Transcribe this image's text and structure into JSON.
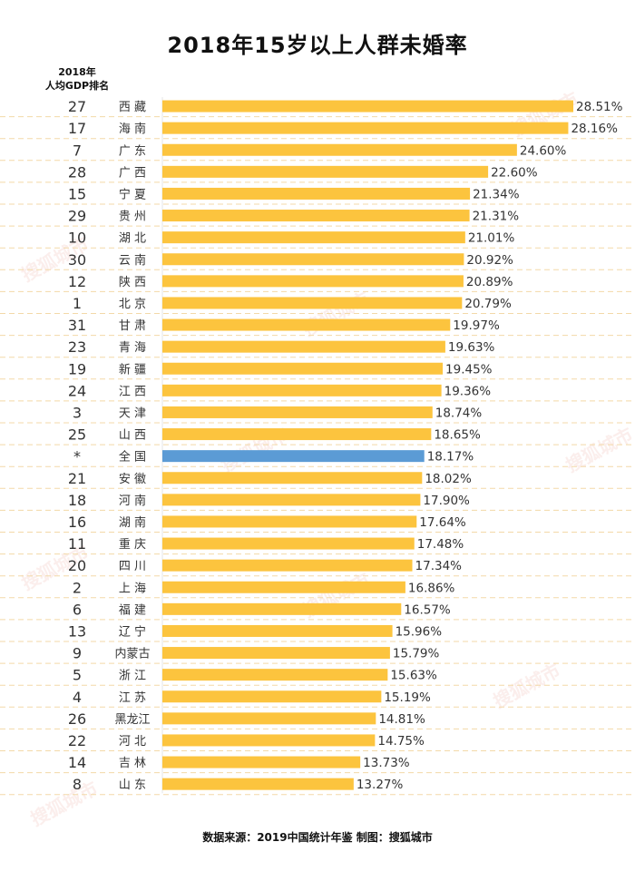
{
  "page": {
    "title": "2018年15岁以上人群未婚率",
    "rank_header_line1": "2018年",
    "rank_header_line2": "人均GDP排名",
    "source": "数据来源：2019中国统计年鉴  制图：搜狐城市",
    "watermark": "搜狐城市"
  },
  "colors": {
    "bar": "#fcc43e",
    "highlight": "#5b9bd5",
    "dash": "#f3d9a8",
    "text": "#333333"
  },
  "chart_data": {
    "type": "bar",
    "orientation": "horizontal",
    "title": "2018年15岁以上人群未婚率",
    "value_suffix": "%",
    "xlim": [
      0,
      28.51
    ],
    "highlight_category": "全国",
    "rows": [
      {
        "rank": "27",
        "region": "西 藏",
        "value": 28.51,
        "label": "28.51%"
      },
      {
        "rank": "17",
        "region": "海 南",
        "value": 28.16,
        "label": "28.16%"
      },
      {
        "rank": "7",
        "region": "广 东",
        "value": 24.6,
        "label": "24.60%"
      },
      {
        "rank": "28",
        "region": "广 西",
        "value": 22.6,
        "label": "22.60%"
      },
      {
        "rank": "15",
        "region": "宁 夏",
        "value": 21.34,
        "label": "21.34%"
      },
      {
        "rank": "29",
        "region": "贵 州",
        "value": 21.31,
        "label": "21.31%"
      },
      {
        "rank": "10",
        "region": "湖 北",
        "value": 21.01,
        "label": "21.01%"
      },
      {
        "rank": "30",
        "region": "云 南",
        "value": 20.92,
        "label": "20.92%"
      },
      {
        "rank": "12",
        "region": "陕 西",
        "value": 20.89,
        "label": "20.89%"
      },
      {
        "rank": "1",
        "region": "北 京",
        "value": 20.79,
        "label": "20.79%"
      },
      {
        "rank": "31",
        "region": "甘 肃",
        "value": 19.97,
        "label": "19.97%"
      },
      {
        "rank": "23",
        "region": "青 海",
        "value": 19.63,
        "label": "19.63%"
      },
      {
        "rank": "19",
        "region": "新 疆",
        "value": 19.45,
        "label": "19.45%"
      },
      {
        "rank": "24",
        "region": "江 西",
        "value": 19.36,
        "label": "19.36%"
      },
      {
        "rank": "3",
        "region": "天 津",
        "value": 18.74,
        "label": "18.74%"
      },
      {
        "rank": "25",
        "region": "山 西",
        "value": 18.65,
        "label": "18.65%"
      },
      {
        "rank": "*",
        "region": "全 国",
        "value": 18.17,
        "label": "18.17%"
      },
      {
        "rank": "21",
        "region": "安 徽",
        "value": 18.02,
        "label": "18.02%"
      },
      {
        "rank": "18",
        "region": "河 南",
        "value": 17.9,
        "label": "17.90%"
      },
      {
        "rank": "16",
        "region": "湖 南",
        "value": 17.64,
        "label": "17.64%"
      },
      {
        "rank": "11",
        "region": "重 庆",
        "value": 17.48,
        "label": "17.48%"
      },
      {
        "rank": "20",
        "region": "四 川",
        "value": 17.34,
        "label": "17.34%"
      },
      {
        "rank": "2",
        "region": "上 海",
        "value": 16.86,
        "label": "16.86%"
      },
      {
        "rank": "6",
        "region": "福 建",
        "value": 16.57,
        "label": "16.57%"
      },
      {
        "rank": "13",
        "region": "辽 宁",
        "value": 15.96,
        "label": "15.96%"
      },
      {
        "rank": "9",
        "region": "内蒙古",
        "value": 15.79,
        "label": "15.79%"
      },
      {
        "rank": "5",
        "region": "浙 江",
        "value": 15.63,
        "label": "15.63%"
      },
      {
        "rank": "4",
        "region": "江 苏",
        "value": 15.19,
        "label": "15.19%"
      },
      {
        "rank": "26",
        "region": "黑龙江",
        "value": 14.81,
        "label": "14.81%"
      },
      {
        "rank": "22",
        "region": "河 北",
        "value": 14.75,
        "label": "14.75%"
      },
      {
        "rank": "14",
        "region": "吉 林",
        "value": 13.73,
        "label": "13.73%"
      },
      {
        "rank": "8",
        "region": "山 东",
        "value": 13.27,
        "label": "13.27%"
      }
    ]
  }
}
